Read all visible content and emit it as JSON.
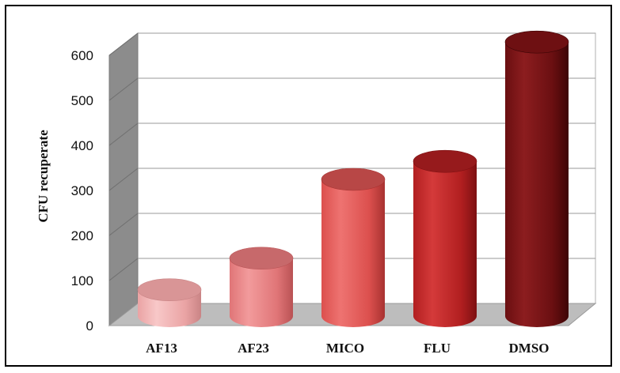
{
  "chart_data": {
    "type": "bar",
    "style": "3d-cylinder",
    "categories": [
      "AF13",
      "AF23",
      "MICO",
      "FLU",
      "DMSO"
    ],
    "values": [
      55,
      125,
      300,
      340,
      605
    ],
    "ylabel": "CFU recuperate",
    "ylim": [
      0,
      600
    ],
    "yticks": [
      0,
      100,
      200,
      300,
      400,
      500,
      600
    ],
    "grid": true,
    "legend": "none",
    "colors": [
      {
        "light": "#f8c8c8",
        "mid": "#eaa3a4",
        "dark": "#c98485",
        "top": "#d99596"
      },
      {
        "light": "#f29b9c",
        "mid": "#e07577",
        "dark": "#b95254",
        "top": "#c7696b"
      },
      {
        "light": "#ee7371",
        "mid": "#dc504e",
        "dark": "#a83231",
        "top": "#b84746"
      },
      {
        "light": "#d43a3a",
        "mid": "#b21f20",
        "dark": "#7d1012",
        "top": "#961a1c"
      },
      {
        "light": "#8c1d1f",
        "mid": "#6a0f11",
        "dark": "#3d0506",
        "top": "#6e1012"
      }
    ]
  }
}
